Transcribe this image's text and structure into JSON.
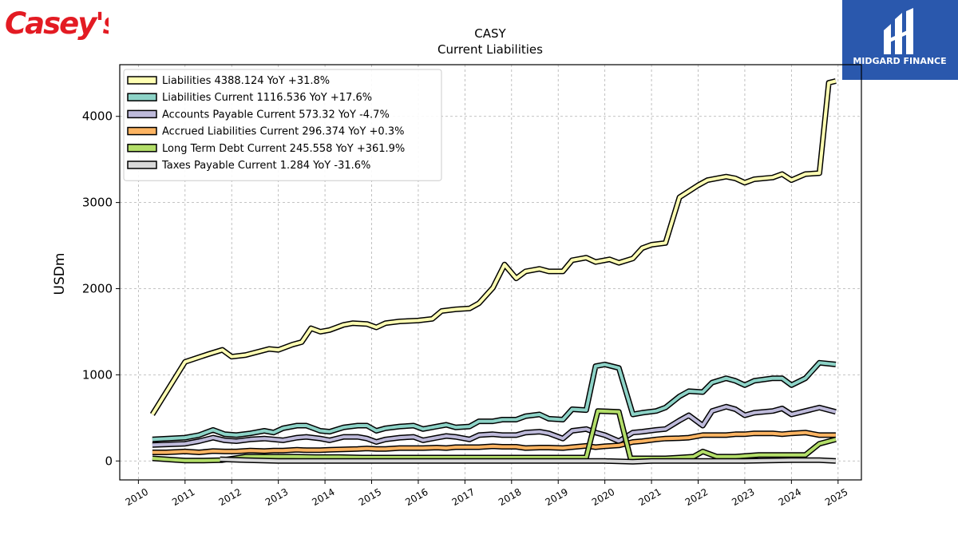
{
  "brand": {
    "company_logo_text": "Casey's",
    "publisher_logo_text": "MIDGARD FINANCE",
    "company_color": "#e31b23",
    "publisher_color": "#2a58ad"
  },
  "chart_data": {
    "type": "line",
    "title": "CASY",
    "subtitle": "Current  Liabilities",
    "ylabel": "USDm",
    "xlabel": "",
    "xlim": [
      2009.6,
      2025.5
    ],
    "ylim": [
      -220,
      4600
    ],
    "x_ticks": [
      "2010",
      "2011",
      "2012",
      "2013",
      "2014",
      "2015",
      "2016",
      "2017",
      "2018",
      "2019",
      "2020",
      "2021",
      "2022",
      "2023",
      "2024",
      "2025"
    ],
    "y_ticks": [
      "0",
      "1000",
      "2000",
      "3000",
      "4000"
    ],
    "grid": true,
    "legend_position": "top-left",
    "series": [
      {
        "name": "Liabilities  4388.124 YoY +31.8%",
        "color": "#ffffb3",
        "points": [
          [
            2010.3,
            540
          ],
          [
            2011.0,
            1150
          ],
          [
            2011.5,
            1240
          ],
          [
            2011.8,
            1290
          ],
          [
            2012.0,
            1210
          ],
          [
            2012.3,
            1230
          ],
          [
            2012.8,
            1300
          ],
          [
            2013.0,
            1290
          ],
          [
            2013.3,
            1350
          ],
          [
            2013.5,
            1380
          ],
          [
            2013.7,
            1540
          ],
          [
            2013.9,
            1500
          ],
          [
            2014.1,
            1520
          ],
          [
            2014.4,
            1580
          ],
          [
            2014.6,
            1600
          ],
          [
            2014.9,
            1590
          ],
          [
            2015.1,
            1550
          ],
          [
            2015.3,
            1600
          ],
          [
            2015.6,
            1620
          ],
          [
            2016.0,
            1630
          ],
          [
            2016.3,
            1650
          ],
          [
            2016.5,
            1740
          ],
          [
            2016.8,
            1760
          ],
          [
            2017.1,
            1770
          ],
          [
            2017.3,
            1830
          ],
          [
            2017.6,
            2010
          ],
          [
            2017.85,
            2280
          ],
          [
            2018.1,
            2120
          ],
          [
            2018.3,
            2200
          ],
          [
            2018.6,
            2230
          ],
          [
            2018.8,
            2200
          ],
          [
            2019.1,
            2200
          ],
          [
            2019.3,
            2330
          ],
          [
            2019.6,
            2360
          ],
          [
            2019.8,
            2310
          ],
          [
            2020.1,
            2340
          ],
          [
            2020.3,
            2300
          ],
          [
            2020.6,
            2350
          ],
          [
            2020.8,
            2470
          ],
          [
            2021.0,
            2510
          ],
          [
            2021.3,
            2530
          ],
          [
            2021.6,
            3060
          ],
          [
            2021.8,
            3130
          ],
          [
            2022.0,
            3200
          ],
          [
            2022.2,
            3260
          ],
          [
            2022.6,
            3300
          ],
          [
            2022.8,
            3280
          ],
          [
            2023.0,
            3230
          ],
          [
            2023.2,
            3270
          ],
          [
            2023.6,
            3290
          ],
          [
            2023.8,
            3330
          ],
          [
            2024.0,
            3260
          ],
          [
            2024.3,
            3330
          ],
          [
            2024.6,
            3340
          ],
          [
            2024.8,
            4390
          ],
          [
            2024.95,
            4410
          ]
        ]
      },
      {
        "name": "Liabilities Current  1116.536 YoY +17.6%",
        "color": "#8dd3c7",
        "points": [
          [
            2010.3,
            250
          ],
          [
            2011.0,
            270
          ],
          [
            2011.3,
            300
          ],
          [
            2011.6,
            360
          ],
          [
            2011.85,
            310
          ],
          [
            2012.1,
            300
          ],
          [
            2012.4,
            320
          ],
          [
            2012.7,
            350
          ],
          [
            2012.9,
            330
          ],
          [
            2013.1,
            380
          ],
          [
            2013.4,
            410
          ],
          [
            2013.6,
            410
          ],
          [
            2013.9,
            350
          ],
          [
            2014.1,
            340
          ],
          [
            2014.4,
            390
          ],
          [
            2014.7,
            410
          ],
          [
            2014.9,
            410
          ],
          [
            2015.1,
            350
          ],
          [
            2015.3,
            380
          ],
          [
            2015.6,
            400
          ],
          [
            2015.9,
            410
          ],
          [
            2016.1,
            370
          ],
          [
            2016.4,
            400
          ],
          [
            2016.6,
            420
          ],
          [
            2016.8,
            390
          ],
          [
            2017.1,
            400
          ],
          [
            2017.3,
            460
          ],
          [
            2017.6,
            460
          ],
          [
            2017.8,
            480
          ],
          [
            2018.1,
            480
          ],
          [
            2018.3,
            520
          ],
          [
            2018.6,
            540
          ],
          [
            2018.8,
            490
          ],
          [
            2019.1,
            480
          ],
          [
            2019.3,
            600
          ],
          [
            2019.6,
            590
          ],
          [
            2019.8,
            1100
          ],
          [
            2020.0,
            1120
          ],
          [
            2020.3,
            1080
          ],
          [
            2020.6,
            540
          ],
          [
            2020.8,
            560
          ],
          [
            2021.1,
            580
          ],
          [
            2021.3,
            620
          ],
          [
            2021.6,
            750
          ],
          [
            2021.8,
            810
          ],
          [
            2022.1,
            800
          ],
          [
            2022.3,
            910
          ],
          [
            2022.6,
            960
          ],
          [
            2022.8,
            930
          ],
          [
            2023.0,
            880
          ],
          [
            2023.2,
            930
          ],
          [
            2023.6,
            960
          ],
          [
            2023.8,
            960
          ],
          [
            2024.0,
            880
          ],
          [
            2024.3,
            960
          ],
          [
            2024.6,
            1140
          ],
          [
            2024.95,
            1120
          ]
        ]
      },
      {
        "name": "Accounts Payable Current  573.32 YoY -4.7%",
        "color": "#bebada",
        "points": [
          [
            2010.3,
            185
          ],
          [
            2011.0,
            200
          ],
          [
            2011.3,
            230
          ],
          [
            2011.6,
            270
          ],
          [
            2011.85,
            240
          ],
          [
            2012.1,
            230
          ],
          [
            2012.4,
            250
          ],
          [
            2012.7,
            260
          ],
          [
            2012.9,
            250
          ],
          [
            2013.1,
            240
          ],
          [
            2013.4,
            270
          ],
          [
            2013.6,
            280
          ],
          [
            2013.9,
            260
          ],
          [
            2014.1,
            240
          ],
          [
            2014.4,
            280
          ],
          [
            2014.7,
            280
          ],
          [
            2014.9,
            260
          ],
          [
            2015.1,
            220
          ],
          [
            2015.3,
            250
          ],
          [
            2015.6,
            270
          ],
          [
            2015.9,
            280
          ],
          [
            2016.1,
            240
          ],
          [
            2016.4,
            270
          ],
          [
            2016.6,
            290
          ],
          [
            2016.8,
            280
          ],
          [
            2017.1,
            250
          ],
          [
            2017.3,
            300
          ],
          [
            2017.6,
            310
          ],
          [
            2017.8,
            300
          ],
          [
            2018.1,
            300
          ],
          [
            2018.3,
            330
          ],
          [
            2018.6,
            340
          ],
          [
            2018.8,
            320
          ],
          [
            2019.1,
            260
          ],
          [
            2019.3,
            350
          ],
          [
            2019.6,
            370
          ],
          [
            2019.8,
            330
          ],
          [
            2020.0,
            300
          ],
          [
            2020.3,
            230
          ],
          [
            2020.6,
            330
          ],
          [
            2020.8,
            340
          ],
          [
            2021.1,
            360
          ],
          [
            2021.3,
            370
          ],
          [
            2021.6,
            470
          ],
          [
            2021.8,
            530
          ],
          [
            2022.1,
            410
          ],
          [
            2022.3,
            580
          ],
          [
            2022.6,
            630
          ],
          [
            2022.8,
            600
          ],
          [
            2023.0,
            530
          ],
          [
            2023.2,
            560
          ],
          [
            2023.6,
            580
          ],
          [
            2023.8,
            610
          ],
          [
            2024.0,
            540
          ],
          [
            2024.3,
            580
          ],
          [
            2024.6,
            620
          ],
          [
            2024.95,
            570
          ]
        ]
      },
      {
        "name": "Accrued Liabilities Current  296.374 YoY +0.3%",
        "color": "#fdb462",
        "points": [
          [
            2010.3,
            100
          ],
          [
            2010.6,
            100
          ],
          [
            2011.0,
            110
          ],
          [
            2011.3,
            100
          ],
          [
            2011.6,
            115
          ],
          [
            2011.85,
            110
          ],
          [
            2012.1,
            110
          ],
          [
            2012.4,
            120
          ],
          [
            2012.7,
            115
          ],
          [
            2012.9,
            120
          ],
          [
            2013.1,
            120
          ],
          [
            2013.4,
            130
          ],
          [
            2013.6,
            125
          ],
          [
            2013.9,
            125
          ],
          [
            2014.1,
            130
          ],
          [
            2014.4,
            135
          ],
          [
            2014.7,
            140
          ],
          [
            2014.9,
            145
          ],
          [
            2015.1,
            140
          ],
          [
            2015.3,
            140
          ],
          [
            2015.6,
            150
          ],
          [
            2015.9,
            150
          ],
          [
            2016.1,
            150
          ],
          [
            2016.4,
            155
          ],
          [
            2016.6,
            150
          ],
          [
            2016.8,
            160
          ],
          [
            2017.1,
            160
          ],
          [
            2017.3,
            160
          ],
          [
            2017.6,
            170
          ],
          [
            2017.8,
            165
          ],
          [
            2018.1,
            165
          ],
          [
            2018.3,
            150
          ],
          [
            2018.6,
            155
          ],
          [
            2018.8,
            155
          ],
          [
            2019.1,
            150
          ],
          [
            2019.3,
            160
          ],
          [
            2019.6,
            175
          ],
          [
            2019.8,
            160
          ],
          [
            2020.0,
            170
          ],
          [
            2020.3,
            180
          ],
          [
            2020.6,
            220
          ],
          [
            2020.8,
            230
          ],
          [
            2021.1,
            250
          ],
          [
            2021.3,
            260
          ],
          [
            2021.6,
            265
          ],
          [
            2021.8,
            270
          ],
          [
            2022.1,
            300
          ],
          [
            2022.3,
            300
          ],
          [
            2022.6,
            300
          ],
          [
            2022.8,
            310
          ],
          [
            2023.0,
            310
          ],
          [
            2023.2,
            320
          ],
          [
            2023.6,
            320
          ],
          [
            2023.8,
            310
          ],
          [
            2024.0,
            320
          ],
          [
            2024.3,
            330
          ],
          [
            2024.6,
            300
          ],
          [
            2024.95,
            300
          ]
        ]
      },
      {
        "name": "Long Term Debt Current  245.558 YoY +361.9%",
        "color": "#b3de69",
        "points": [
          [
            2010.3,
            30
          ],
          [
            2010.7,
            15
          ],
          [
            2011.0,
            5
          ],
          [
            2011.4,
            5
          ],
          [
            2011.8,
            10
          ],
          [
            2012.3,
            50
          ],
          [
            2012.8,
            50
          ],
          [
            2013.3,
            50
          ],
          [
            2013.8,
            45
          ],
          [
            2014.3,
            45
          ],
          [
            2014.8,
            40
          ],
          [
            2015.3,
            40
          ],
          [
            2015.8,
            40
          ],
          [
            2016.3,
            40
          ],
          [
            2016.8,
            40
          ],
          [
            2017.3,
            40
          ],
          [
            2017.8,
            40
          ],
          [
            2018.3,
            40
          ],
          [
            2018.8,
            40
          ],
          [
            2019.3,
            40
          ],
          [
            2019.6,
            40
          ],
          [
            2019.85,
            580
          ],
          [
            2020.3,
            570
          ],
          [
            2020.55,
            30
          ],
          [
            2020.8,
            30
          ],
          [
            2021.3,
            30
          ],
          [
            2021.6,
            40
          ],
          [
            2021.9,
            50
          ],
          [
            2022.1,
            110
          ],
          [
            2022.4,
            50
          ],
          [
            2022.8,
            50
          ],
          [
            2023.3,
            70
          ],
          [
            2023.8,
            70
          ],
          [
            2024.3,
            70
          ],
          [
            2024.6,
            200
          ],
          [
            2024.95,
            250
          ]
        ]
      },
      {
        "name": "Taxes Payable Current  1.284 YoY -31.6%",
        "color": "#d9d9d9",
        "points": [
          [
            2011.75,
            20
          ],
          [
            2012.3,
            10
          ],
          [
            2013.0,
            0
          ],
          [
            2014.0,
            0
          ],
          [
            2015.0,
            0
          ],
          [
            2016.0,
            0
          ],
          [
            2017.0,
            0
          ],
          [
            2018.0,
            0
          ],
          [
            2019.0,
            0
          ],
          [
            2020.0,
            0
          ],
          [
            2020.6,
            -10
          ],
          [
            2021.0,
            0
          ],
          [
            2021.5,
            0
          ],
          [
            2022.0,
            0
          ],
          [
            2023.0,
            0
          ],
          [
            2024.0,
            10
          ],
          [
            2024.6,
            10
          ],
          [
            2024.95,
            0
          ]
        ]
      }
    ]
  }
}
